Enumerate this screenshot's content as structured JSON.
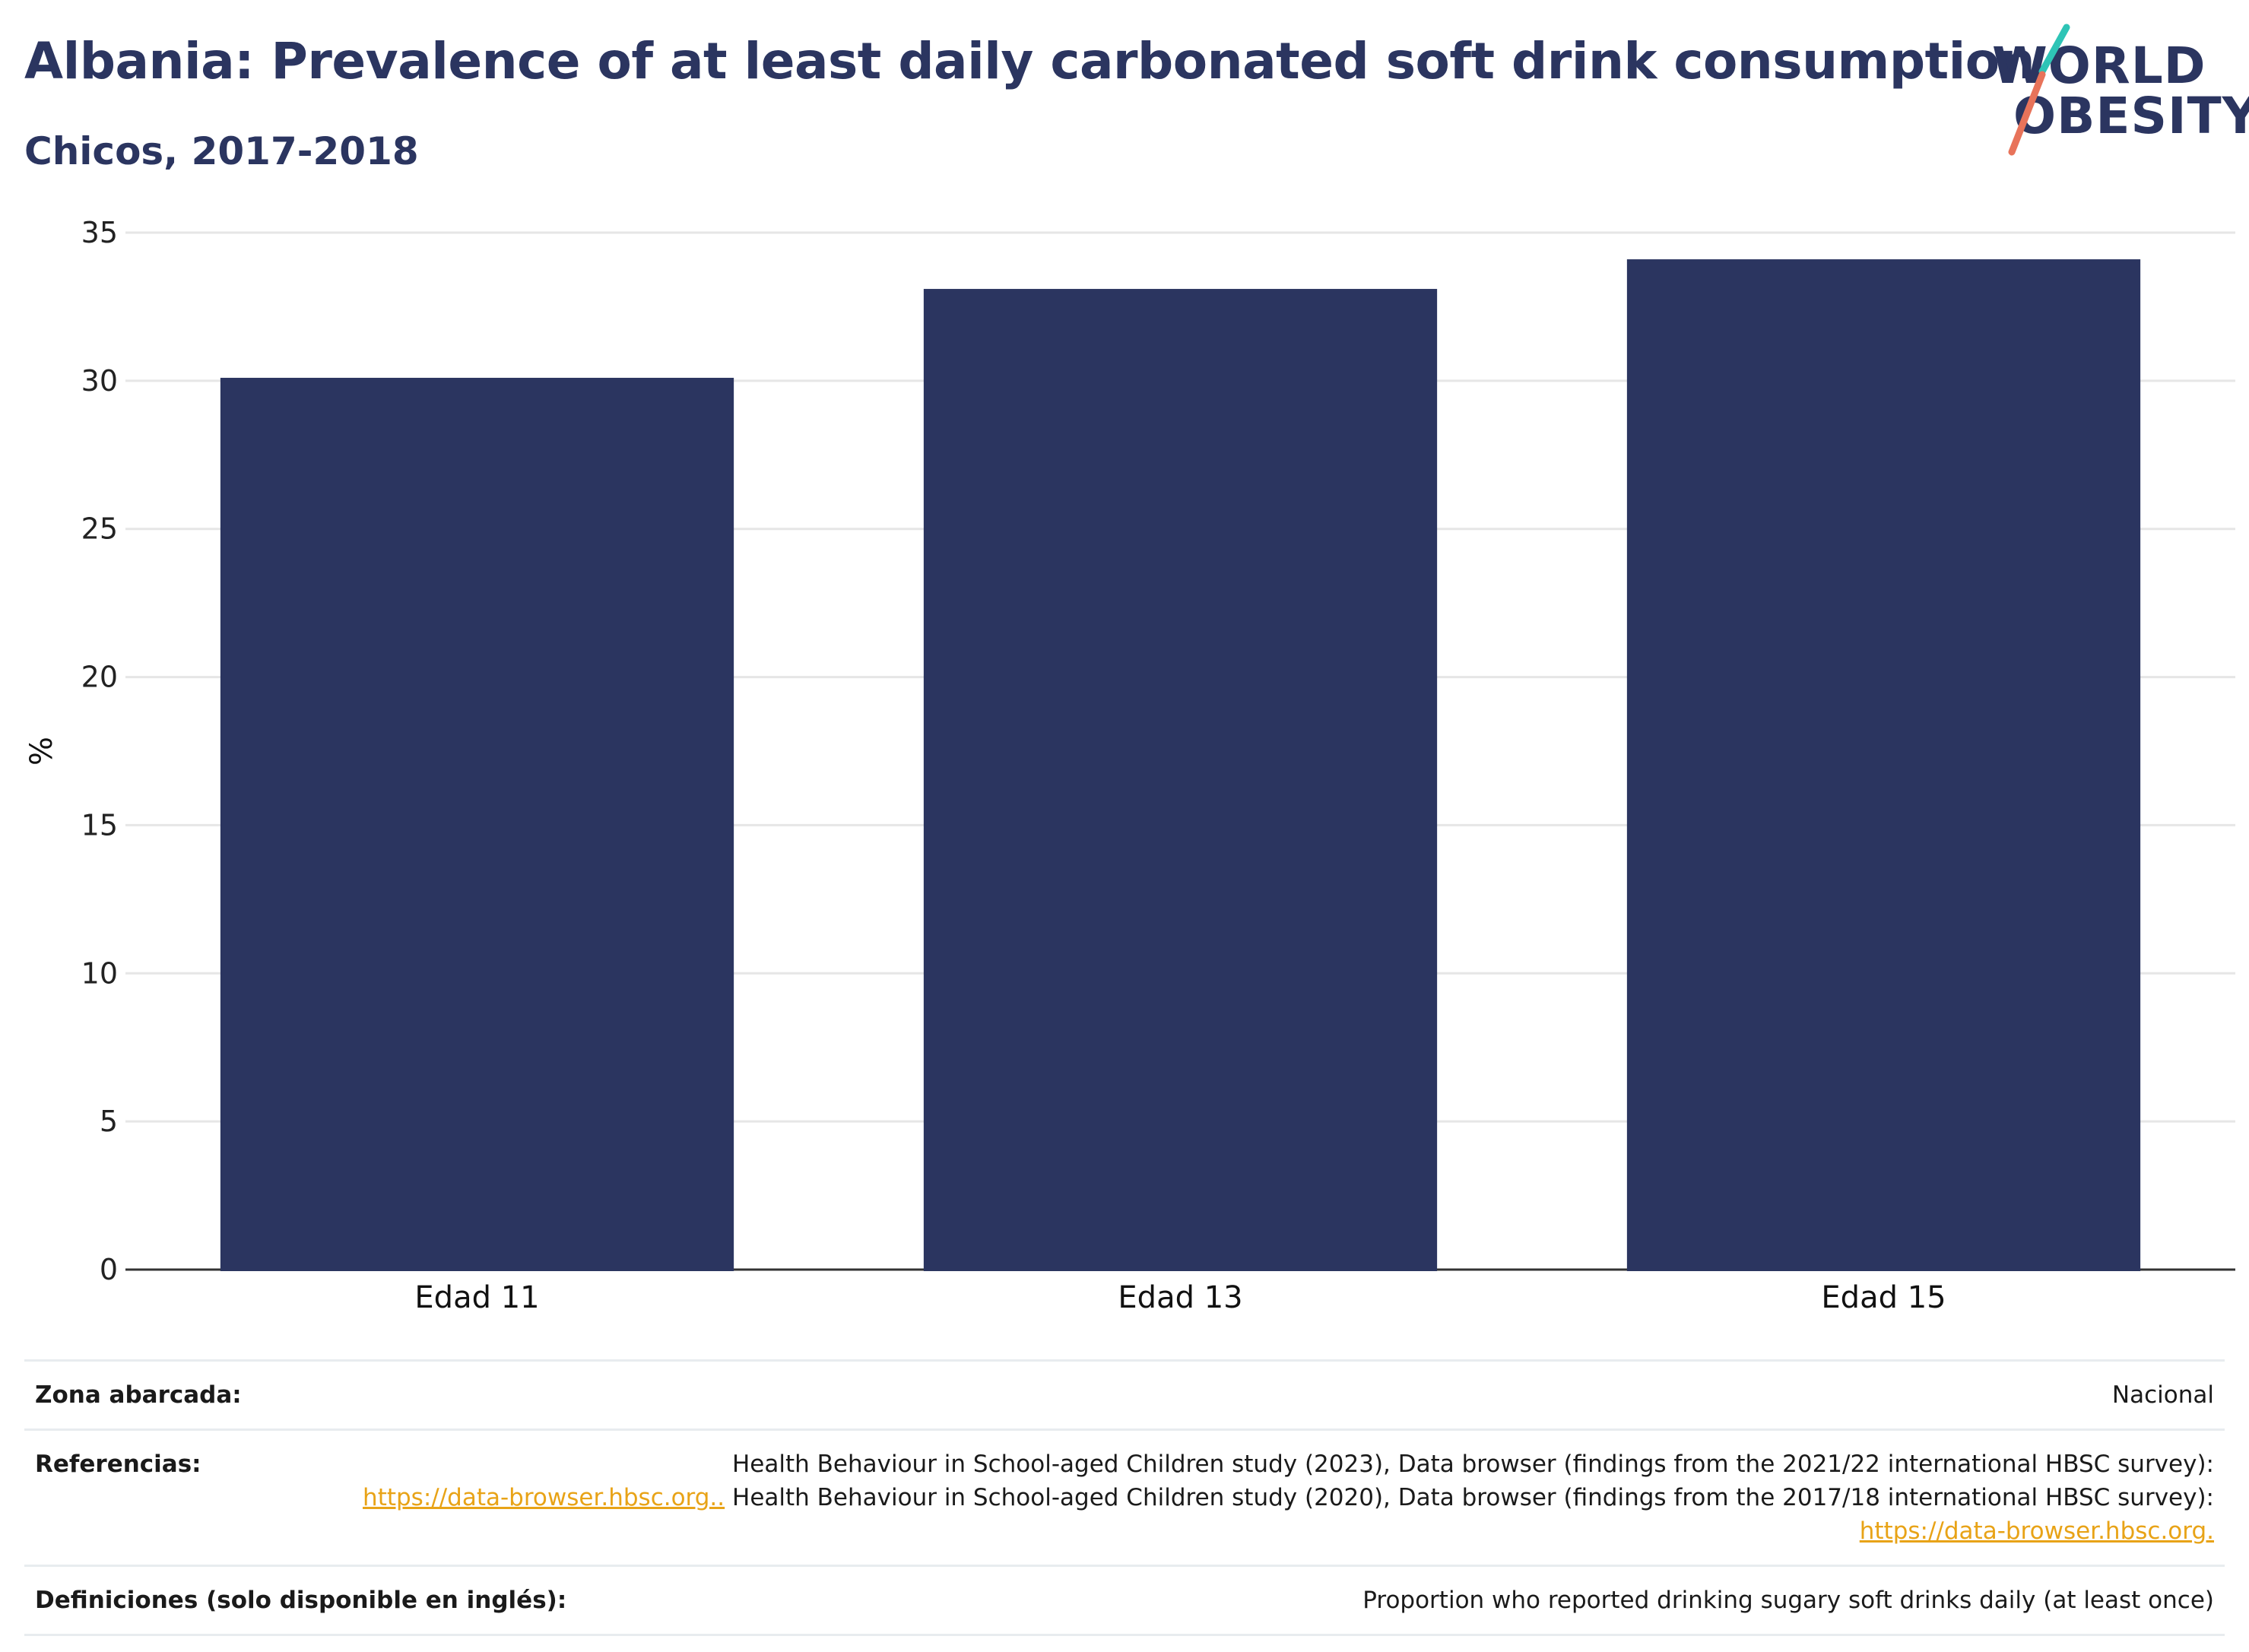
{
  "header": {
    "title": "Albania: Prevalence of at least daily carbonated soft drink consumption",
    "subtitle": "Chicos, 2017-2018"
  },
  "logo": {
    "line1": "WORLD",
    "line2": "OBESITY",
    "stroke_colors": [
      "#2ec4b6",
      "#e8735a"
    ]
  },
  "chart_data": {
    "type": "bar",
    "categories": [
      "Edad 11",
      "Edad 13",
      "Edad 15"
    ],
    "values": [
      30.1,
      33.1,
      34.1
    ],
    "ylabel": "%",
    "ylim": [
      0,
      35
    ],
    "yticks": [
      0,
      5,
      10,
      15,
      20,
      25,
      30,
      35
    ],
    "grid": true,
    "bar_color": "#2b3560"
  },
  "info": {
    "zona_label": "Zona abarcada:",
    "zona_value": "Nacional",
    "ref_label": "Referencias:",
    "ref_text_1": "Health Behaviour in School-aged Children study (2023), Data browser (findings from the 2021/22 international HBSC survey):",
    "ref_link_1": "https://data-browser.hbsc.org..",
    "ref_text_2": " Health Behaviour in School-aged Children study (2020), Data browser (findings from the 2017/18 international HBSC survey): ",
    "ref_link_2": "https://data-browser.hbsc.org.",
    "def_label": "Definiciones (solo disponible en inglés):",
    "def_value": "Proportion who reported drinking sugary soft drinks daily (at least once)"
  },
  "colors": {
    "title": "#2b3560",
    "link": "#e8a317",
    "grid": "#e6e6e6"
  }
}
